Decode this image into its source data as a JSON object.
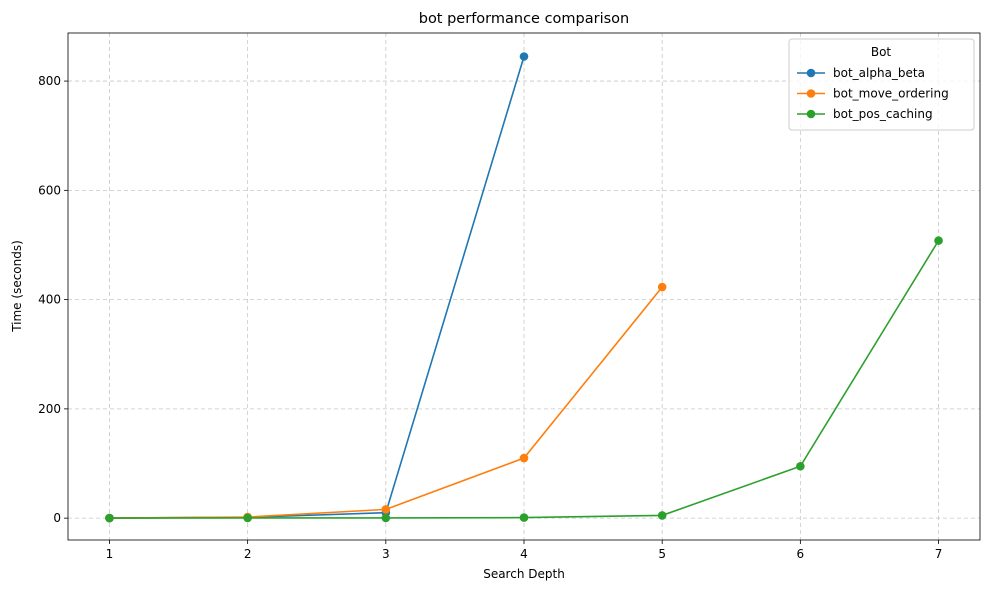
{
  "chart_data": {
    "type": "line",
    "title": "bot performance comparison",
    "xlabel": "Search Depth",
    "ylabel": "Time (seconds)",
    "xlim": [
      0.7,
      7.3
    ],
    "ylim": [
      -40,
      888
    ],
    "xticks": [
      1,
      2,
      3,
      4,
      5,
      6,
      7
    ],
    "yticks": [
      0,
      200,
      400,
      600,
      800
    ],
    "grid": true,
    "legend": {
      "title": "Bot",
      "placement": "top-right"
    },
    "series": [
      {
        "name": "bot_alpha_beta",
        "color": "#1f77b4",
        "x": [
          1,
          2,
          3,
          4
        ],
        "y": [
          0.2,
          1.5,
          10,
          845
        ]
      },
      {
        "name": "bot_move_ordering",
        "color": "#ff7f0e",
        "x": [
          1,
          2,
          3,
          4,
          5
        ],
        "y": [
          0.2,
          2,
          16,
          110,
          423
        ]
      },
      {
        "name": "bot_pos_caching",
        "color": "#2ca02c",
        "x": [
          1,
          2,
          3,
          4,
          5,
          6,
          7
        ],
        "y": [
          0.1,
          0.3,
          0.3,
          1,
          5,
          95,
          508
        ]
      }
    ]
  }
}
